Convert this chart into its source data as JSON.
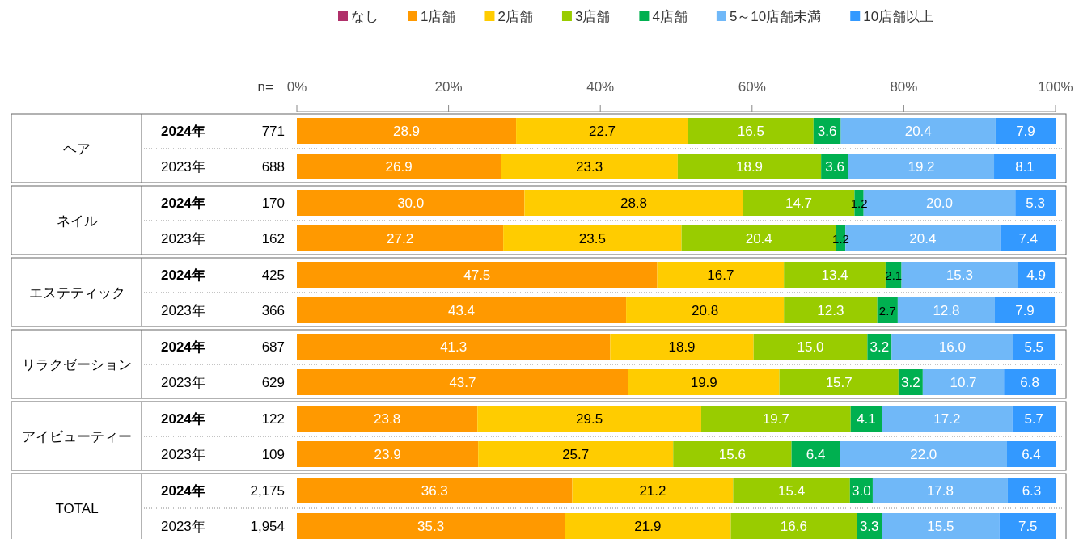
{
  "chart_data": {
    "type": "bar",
    "orientation": "horizontal",
    "stacked": true,
    "legend": "top",
    "categories": [
      "2024年",
      "2023年",
      "2024年",
      "2023年",
      "2024年",
      "2023年",
      "2024年",
      "2023年",
      "2024年",
      "2023年",
      "2024年",
      "2023年"
    ],
    "xlim": [
      0,
      100
    ],
    "xticks": [
      {
        "value": 0,
        "label": "0%"
      },
      {
        "value": 20,
        "label": "20%"
      },
      {
        "value": 40,
        "label": "40%"
      },
      {
        "value": 60,
        "label": "60%"
      },
      {
        "value": 80,
        "label": "80%"
      },
      {
        "value": 100,
        "label": "100%"
      }
    ],
    "annotations": [
      "n=",
      "ヘア",
      "ネイル",
      "エステティック",
      "リラクゼーション",
      "アイビューティー",
      "TOTAL",
      "771",
      "688",
      "170",
      "162",
      "425",
      "366",
      "687",
      "629",
      "122",
      "109",
      "2,175",
      "1,954"
    ],
    "series": [
      {
        "name": "なし",
        "color": "#b0306a",
        "values": [
          null,
          null,
          null,
          null,
          null,
          null,
          null,
          null,
          null,
          null,
          null,
          null
        ]
      },
      {
        "name": "1店舗",
        "color": "#ff9900",
        "values": [
          28.9,
          26.9,
          30.0,
          27.2,
          47.5,
          43.4,
          41.3,
          43.7,
          23.8,
          23.9,
          36.3,
          35.3
        ],
        "value_labels": [
          "28.9",
          "26.9",
          "30.0",
          "27.2",
          "47.5",
          "43.4",
          "41.3",
          "43.7",
          "23.8",
          "23.9",
          "36.3",
          "35.3"
        ]
      },
      {
        "name": "2店舗",
        "color": "#ffcc00",
        "values": [
          22.7,
          23.3,
          28.8,
          23.5,
          16.7,
          20.8,
          18.9,
          19.9,
          29.5,
          25.7,
          21.2,
          21.9
        ],
        "value_labels": [
          "22.7",
          "23.3",
          "28.8",
          "23.5",
          "16.7",
          "20.8",
          "18.9",
          "19.9",
          "29.5",
          "25.7",
          "21.2",
          "21.9"
        ]
      },
      {
        "name": "3店舗",
        "color": "#99cc00",
        "values": [
          16.5,
          18.9,
          14.7,
          20.4,
          13.4,
          12.3,
          15.0,
          15.7,
          19.7,
          15.6,
          15.4,
          16.6
        ],
        "value_labels": [
          "16.5",
          "18.9",
          "14.7",
          "20.4",
          "13.4",
          "12.3",
          "15.0",
          "15.7",
          "19.7",
          "15.6",
          "15.4",
          "16.6"
        ]
      },
      {
        "name": "4店舗",
        "color": "#00b050",
        "values": [
          3.6,
          3.6,
          1.2,
          1.2,
          2.1,
          2.7,
          3.2,
          3.2,
          4.1,
          6.4,
          3.0,
          3.3
        ],
        "value_labels": [
          "3.6",
          "3.6",
          "1.2",
          "1.2",
          "2.1",
          "2.7",
          "3.2",
          "3.2",
          "4.1",
          "6.4",
          "3.0",
          "3.3"
        ]
      },
      {
        "name": "5～10店舗未満",
        "color": "#70b8f8",
        "values": [
          20.4,
          19.2,
          20.0,
          20.4,
          15.3,
          12.8,
          16.0,
          10.7,
          17.2,
          22.0,
          17.8,
          15.5
        ],
        "value_labels": [
          "20.4",
          "19.2",
          "20.0",
          "20.4",
          "15.3",
          "12.8",
          "16.0",
          "10.7",
          "17.2",
          "22.0",
          "17.8",
          "15.5"
        ]
      },
      {
        "name": "10店舗以上",
        "color": "#3399ff",
        "values": [
          7.9,
          8.1,
          5.3,
          7.4,
          4.9,
          7.9,
          5.5,
          6.8,
          5.7,
          6.4,
          6.3,
          7.5
        ],
        "value_labels": [
          "7.9",
          "8.1",
          "5.3",
          "7.4",
          "4.9",
          "7.9",
          "5.5",
          "6.8",
          "5.7",
          "6.4",
          "6.3",
          "7.5"
        ]
      }
    ]
  }
}
